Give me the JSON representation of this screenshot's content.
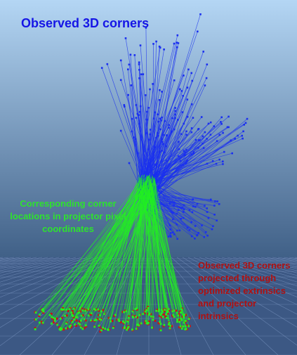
{
  "labels": {
    "observed": "Observed 3D corners",
    "pixels": "Corresponding corner locations in projector pixel coordinates",
    "projected": "Observed 3D corners projected through optimized extrinsics and projector intrinsics"
  },
  "colors": {
    "observed": "#1a2ff0",
    "pixels": "#22f022",
    "projected": "#c81414",
    "observed_text": "#1515e6",
    "pixels_text": "#2ee22e",
    "projected_text": "#b01010",
    "sky_top": "#b4d6f4",
    "sky_bottom": "#3f5f86",
    "floor": "#3c5884",
    "grid": "#8aa6d2"
  },
  "scene": {
    "background": "gradient-sky-with-grid-floor",
    "marker_shape": "square"
  }
}
